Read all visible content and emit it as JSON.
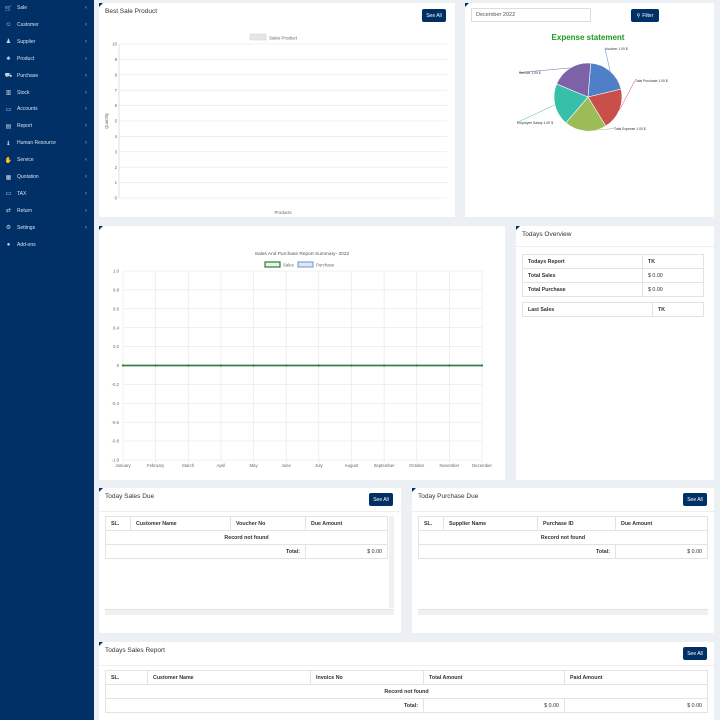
{
  "sidebar": {
    "items": [
      {
        "label": "Sale",
        "icon": "cart-icon",
        "glyph": "🛒"
      },
      {
        "label": "Customer",
        "icon": "user-circle-icon",
        "glyph": "☺"
      },
      {
        "label": "Supplier",
        "icon": "user-icon",
        "glyph": "♟"
      },
      {
        "label": "Product",
        "icon": "shopping-bag-icon",
        "glyph": "♣"
      },
      {
        "label": "Purchase",
        "icon": "truck-icon",
        "glyph": "⛟"
      },
      {
        "label": "Stock",
        "icon": "bar-chart-icon",
        "glyph": "▥"
      },
      {
        "label": "Accounts",
        "icon": "money-icon",
        "glyph": "▭"
      },
      {
        "label": "Report",
        "icon": "book-icon",
        "glyph": "▤"
      },
      {
        "label": "Human Resource",
        "icon": "users-icon",
        "glyph": "♝"
      },
      {
        "label": "Service",
        "icon": "handshake-icon",
        "glyph": "✋"
      },
      {
        "label": "Quotation",
        "icon": "file-icon",
        "glyph": "▦"
      },
      {
        "label": "TAX",
        "icon": "money-bill-icon",
        "glyph": "▭"
      },
      {
        "label": "Return",
        "icon": "exchange-icon",
        "glyph": "⇄"
      },
      {
        "label": "Settings",
        "icon": "gear-icon",
        "glyph": "⚙"
      },
      {
        "label": "Add-ons",
        "icon": "circle-icon",
        "glyph": "●"
      }
    ],
    "chevron": "‹"
  },
  "best_sale": {
    "title": "Best Sale Product",
    "see_all": "See All",
    "legend": "Sales Product",
    "ylabel": "Quantity",
    "xlabel": "Products",
    "ticks": [
      "10",
      "9",
      "8",
      "7",
      "6",
      "5",
      "4",
      "3",
      "2",
      "1",
      "0"
    ]
  },
  "expense": {
    "month_value": "December 2022",
    "filter_label": "Filter",
    "chart_title": "Expense statement",
    "slices": [
      {
        "label": "Voucher 1.00 $",
        "value": 1,
        "color": "#4e7fc7"
      },
      {
        "label": "Total Purchase 1.00 $",
        "value": 1,
        "color": "#c9504a"
      },
      {
        "label": "Total Expense 1.00 $",
        "value": 1,
        "color": "#9bbc56"
      },
      {
        "label": "Employee Salary 1.00 $",
        "value": 1,
        "color": "#36bfa9"
      },
      {
        "label": "Service 1.00 $",
        "value": 1,
        "color": "#7e62a8"
      }
    ]
  },
  "chart_data": {
    "type": "line",
    "title": "Sales And Purchase Report Summary- 2022",
    "categories": [
      "January",
      "February",
      "March",
      "April",
      "May",
      "June",
      "July",
      "August",
      "September",
      "October",
      "November",
      "December"
    ],
    "series": [
      {
        "name": "Sales",
        "values": [
          0,
          0,
          0,
          0,
          0,
          0,
          0,
          0,
          0,
          0,
          0,
          0
        ],
        "color": "#2e7d32"
      },
      {
        "name": "Purchase",
        "values": [
          0,
          0,
          0,
          0,
          0,
          0,
          0,
          0,
          0,
          0,
          0,
          0
        ],
        "color": "#7fa7d9"
      }
    ],
    "ylim": [
      -1.0,
      1.0
    ],
    "yticks": [
      "1.0",
      "0.8",
      "0.6",
      "0.4",
      "0.2",
      "0",
      "-0.2",
      "-0.4",
      "-0.6",
      "-0.8",
      "-1.0"
    ],
    "grid": true,
    "legend": "top"
  },
  "overview": {
    "title": "Todays Overview",
    "col1": "Todays Report",
    "col2": "TK",
    "rows": [
      {
        "label": "Total Sales",
        "value": "$ 0.00"
      },
      {
        "label": "Total Purchase",
        "value": "$ 0.00"
      }
    ],
    "last_sales": "Last Sales",
    "last_tk": "TK"
  },
  "sales_due": {
    "title": "Today Sales Due",
    "see_all": "See All",
    "headers": [
      "SL.",
      "Customer Name",
      "Voucher No",
      "Due Amount"
    ],
    "empty": "Record not found",
    "total_label": "Total:",
    "total_value": "$ 0.00"
  },
  "purchase_due": {
    "title": "Today Purchase Due",
    "see_all": "See All",
    "headers": [
      "SL.",
      "Supplier Name",
      "Purchase ID",
      "Due Amount"
    ],
    "empty": "Record not found",
    "total_label": "Total:",
    "total_value": "$ 0.00"
  },
  "sales_report": {
    "title": "Todays Sales Report",
    "see_all": "See All",
    "headers": [
      "SL.",
      "Customer Name",
      "Invoice No",
      "Total Amount",
      "Paid Amount"
    ],
    "empty": "Record not found",
    "total_label": "Total:",
    "total_value": "$ 0.00",
    "paid_value": "$ 0.00"
  }
}
